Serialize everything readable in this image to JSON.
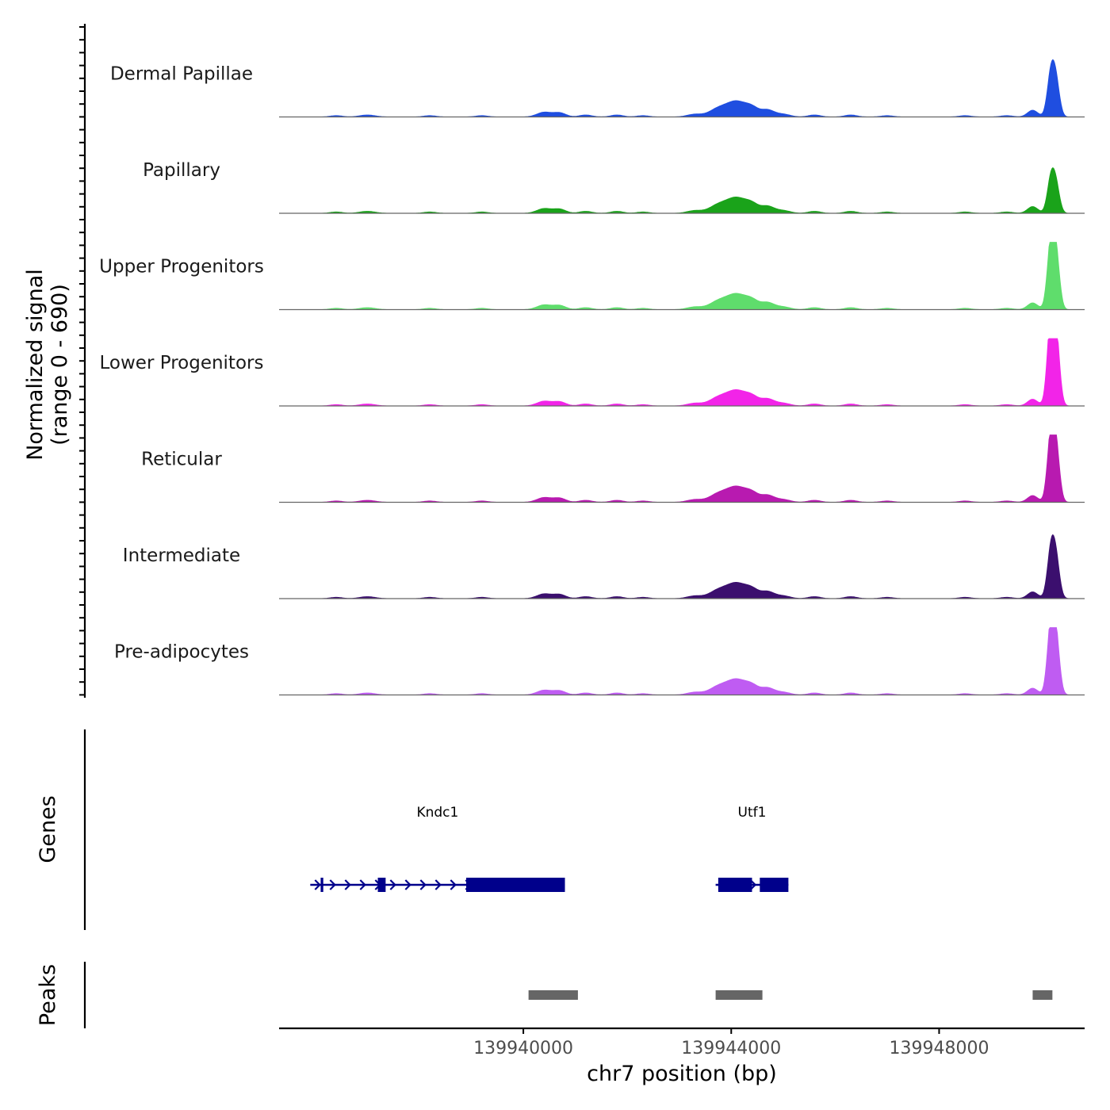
{
  "chart_data": {
    "type": "area",
    "title": "",
    "ylabel_line1": "Normalized signal",
    "ylabel_line2": "(range 0 - 690)",
    "xlabel": "chr7 position (bp)",
    "y_range": [
      0,
      690
    ],
    "xlim": [
      139935300,
      139950800
    ],
    "x_ticks": [
      139940000,
      139944000,
      139948000
    ],
    "x_tick_labels": [
      "139940000",
      "139944000",
      "139948000"
    ],
    "tracks": [
      {
        "name": "Dermal Papillae",
        "color": "#1f4ee0",
        "peak_scale": 0.78
      },
      {
        "name": "Papillary",
        "color": "#1aa31a",
        "peak_scale": 0.62
      },
      {
        "name": "Upper Progenitors",
        "color": "#5fdd6c",
        "peak_scale": 1.2
      },
      {
        "name": "Lower Progenitors",
        "color": "#f224e8",
        "peak_scale": 1.55
      },
      {
        "name": "Reticular",
        "color": "#b81ab0",
        "peak_scale": 1.2
      },
      {
        "name": "Intermediate",
        "color": "#3b0f6e",
        "peak_scale": 0.87
      },
      {
        "name": "Pre-adipocytes",
        "color": "#bf5cf2",
        "peak_scale": 1.25
      }
    ],
    "signal_profile": [
      {
        "pos": 139936400,
        "height": 0.02,
        "width": 120
      },
      {
        "pos": 139937000,
        "height": 0.03,
        "width": 150
      },
      {
        "pos": 139938200,
        "height": 0.02,
        "width": 120
      },
      {
        "pos": 139939200,
        "height": 0.02,
        "width": 120
      },
      {
        "pos": 139940400,
        "height": 0.07,
        "width": 140
      },
      {
        "pos": 139940700,
        "height": 0.06,
        "width": 120
      },
      {
        "pos": 139941200,
        "height": 0.03,
        "width": 120
      },
      {
        "pos": 139941800,
        "height": 0.03,
        "width": 120
      },
      {
        "pos": 139942300,
        "height": 0.02,
        "width": 120
      },
      {
        "pos": 139943300,
        "height": 0.04,
        "width": 150
      },
      {
        "pos": 139943750,
        "height": 0.12,
        "width": 170
      },
      {
        "pos": 139944100,
        "height": 0.22,
        "width": 180
      },
      {
        "pos": 139944400,
        "height": 0.12,
        "width": 130
      },
      {
        "pos": 139944700,
        "height": 0.1,
        "width": 130
      },
      {
        "pos": 139945000,
        "height": 0.04,
        "width": 140
      },
      {
        "pos": 139945600,
        "height": 0.03,
        "width": 120
      },
      {
        "pos": 139946300,
        "height": 0.03,
        "width": 120
      },
      {
        "pos": 139947000,
        "height": 0.02,
        "width": 120
      },
      {
        "pos": 139948500,
        "height": 0.02,
        "width": 120
      },
      {
        "pos": 139949300,
        "height": 0.02,
        "width": 120
      },
      {
        "pos": 139949800,
        "height": 0.1,
        "width": 100
      },
      {
        "pos": 139950150,
        "height": 0.78,
        "width": 70
      },
      {
        "pos": 139950250,
        "height": 0.62,
        "width": 70
      }
    ],
    "genes": [
      {
        "name": "Kndc1",
        "start": 139935900,
        "end": 139940800,
        "strand": "+",
        "exons": [
          [
            139936100,
            139936150
          ],
          [
            139937200,
            139937350
          ],
          [
            139938900,
            139940800
          ]
        ]
      },
      {
        "name": "Utf1",
        "start": 139943700,
        "end": 139945100,
        "strand": "+",
        "exons": [
          [
            139943750,
            139944400
          ],
          [
            139944550,
            139945100
          ]
        ]
      }
    ],
    "peaks": [
      [
        139940100,
        139941050
      ],
      [
        139943700,
        139944600
      ],
      [
        139949800,
        139950180
      ]
    ],
    "panel_labels": {
      "genes": "Genes",
      "peaks": "Peaks"
    }
  },
  "colors": {
    "gene": "#00008b",
    "peak": "#666666",
    "axis": "#000000",
    "baseline": "#666666"
  }
}
